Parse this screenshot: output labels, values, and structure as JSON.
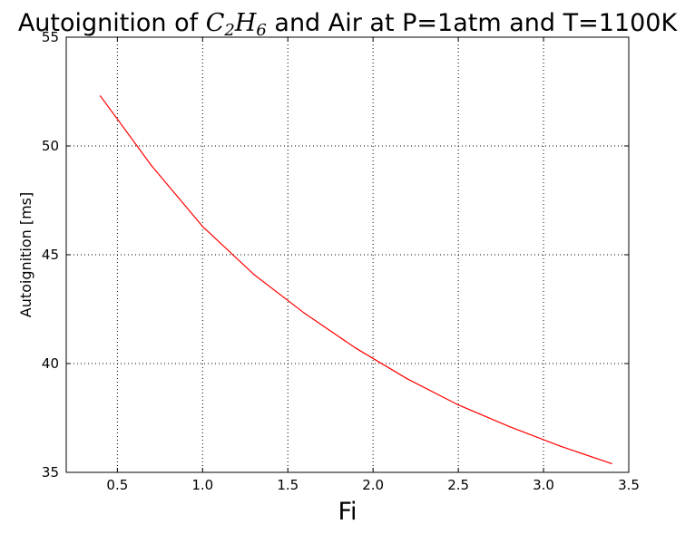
{
  "chart_data": {
    "type": "line",
    "title": {
      "prefix": "Autoignition of ",
      "formula_main_1": "C",
      "formula_sub_1": "2",
      "formula_main_2": "H",
      "formula_sub_2": "6",
      "suffix": " and Air at P=1atm and T=1100K"
    },
    "xlabel": "Fi",
    "ylabel": "Autoignition [ms]",
    "xlim": [
      0.2,
      3.5
    ],
    "ylim": [
      35,
      55
    ],
    "xticks": [
      0.5,
      1.0,
      1.5,
      2.0,
      2.5,
      3.0,
      3.5
    ],
    "xtick_labels": [
      "0.5",
      "1.0",
      "1.5",
      "2.0",
      "2.5",
      "3.0",
      "3.5"
    ],
    "yticks": [
      35,
      40,
      45,
      50,
      55
    ],
    "ytick_labels": [
      "35",
      "40",
      "45",
      "50",
      "55"
    ],
    "grid": true,
    "series": [
      {
        "color": "#ff0000",
        "x": [
          0.4,
          0.7,
          1.0,
          1.3,
          1.6,
          1.9,
          2.2,
          2.5,
          2.8,
          3.1,
          3.4
        ],
        "y": [
          52.3,
          49.1,
          46.3,
          44.1,
          42.3,
          40.7,
          39.3,
          38.1,
          37.1,
          36.2,
          35.4
        ]
      }
    ]
  }
}
